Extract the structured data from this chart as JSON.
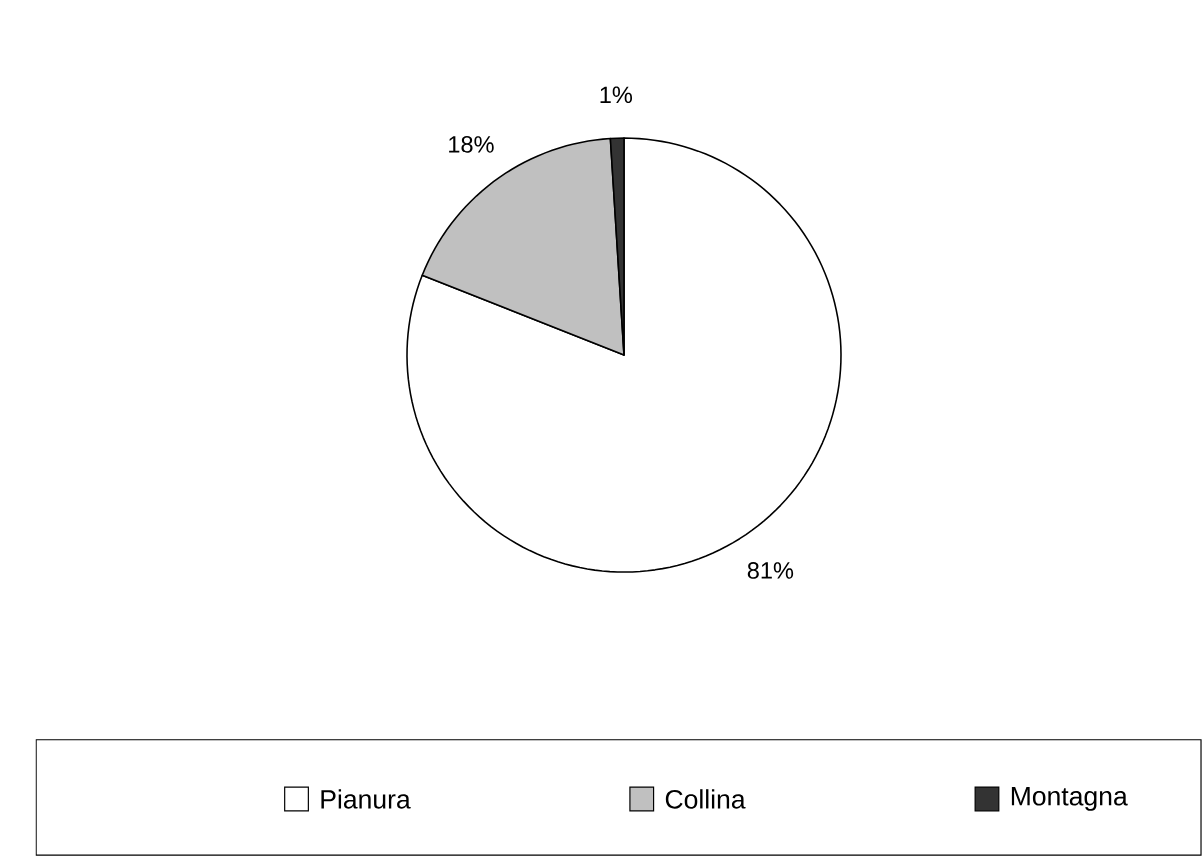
{
  "chart_data": {
    "type": "pie",
    "categories": [
      "Pianura",
      "Collina",
      "Montagna"
    ],
    "values": [
      81,
      18,
      1
    ],
    "value_labels": [
      "81%",
      "18%",
      "1%"
    ],
    "colors": [
      "#ffffff",
      "#c0c0c0",
      "#333333"
    ],
    "legend": "bottom"
  }
}
